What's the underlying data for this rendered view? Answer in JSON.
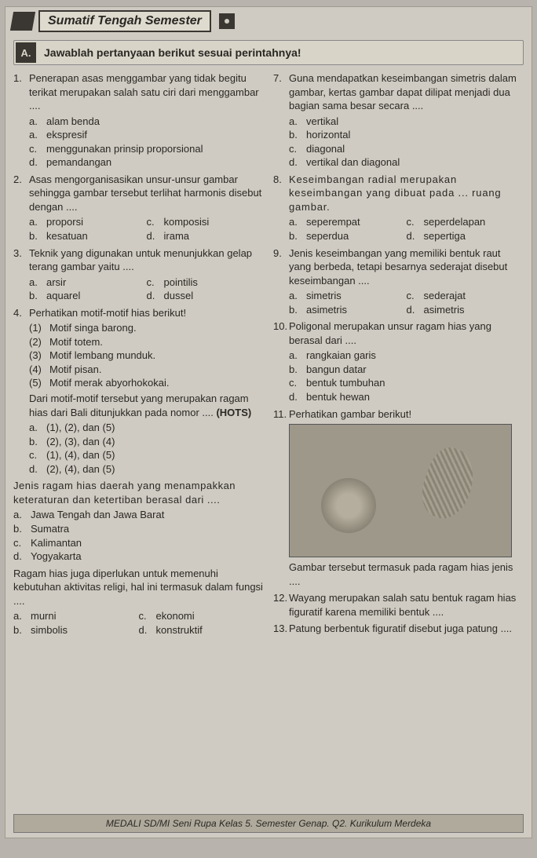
{
  "banner": {
    "title": "Sumatif Tengah Semester"
  },
  "section": {
    "letter": "A.",
    "instruction": "Jawablah pertanyaan berikut sesuai perintahnya!"
  },
  "left": {
    "q1": {
      "num": "1.",
      "text": "Penerapan asas menggambar yang tidak begitu terikat merupakan salah satu ciri dari menggambar ....",
      "a": "alam benda",
      "b": "ekspresif",
      "c": "menggunakan prinsip proporsional",
      "d": "pemandangan"
    },
    "q2": {
      "num": "2.",
      "text": "Asas mengorganisasikan unsur-unsur gambar sehingga gambar tersebut terlihat harmonis disebut dengan ....",
      "a": "proporsi",
      "c": "komposisi",
      "b": "kesatuan",
      "d": "irama"
    },
    "q3": {
      "num": "3.",
      "text": "Teknik yang digunakan untuk menunjuk­kan gelap terang gambar yaitu ....",
      "a": "arsir",
      "c": "pointilis",
      "b": "aquarel",
      "d": "dussel"
    },
    "q4": {
      "num": "4.",
      "text": "Perhatikan motif-motif hias berikut!",
      "s1": "(1)",
      "s1t": "Motif singa barong.",
      "s2": "(2)",
      "s2t": "Motif totem.",
      "s3": "(3)",
      "s3t": "Motif lembang munduk.",
      "s4": "(4)",
      "s4t": "Motif pisan.",
      "s5": "(5)",
      "s5t": "Motif merak abyorhokokai.",
      "tail": "Dari motif-motif tersebut yang merupakan ragam hias dari Bali ditunjukkan pada nomor .... ",
      "hots": "(HOTS)",
      "a": "(1), (2), dan (5)",
      "b": "(2), (3), dan (4)",
      "c": "(1), (4), dan (5)",
      "d": "(2), (4), dan (5)"
    },
    "q5": {
      "text": "Jenis ragam hias daerah yang menampakkan keteraturan dan ketertiban berasal dari ....",
      "a": "Jawa Tengah dan Jawa Barat",
      "b": "Sumatra",
      "c": "Kalimantan",
      "d": "Yogyakarta"
    },
    "q6": {
      "text": "Ragam hias juga diperlukan untuk memenuhi kebutuhan aktivitas religi, hal ini termasuk dalam fungsi ....",
      "a": "murni",
      "c": "ekonomi",
      "b": "simbolis",
      "d": "konstruktif"
    }
  },
  "right": {
    "q7": {
      "num": "7.",
      "text": "Guna mendapatkan keseimbangan simetris dalam gambar, kertas gambar dapat dilipat menjadi dua bagian sama besar secara ....",
      "a": "vertikal",
      "b": "horizontal",
      "c": "diagonal",
      "d": "vertikal dan diagonal"
    },
    "q8": {
      "num": "8.",
      "text": "Keseimbangan radial merupakan keseimbangan yang dibuat pada ... ruang gambar.",
      "a": "seperempat",
      "c": "seperdelapan",
      "b": "seperdua",
      "d": "sepertiga"
    },
    "q9": {
      "num": "9.",
      "text": "Jenis keseimbangan yang memiliki bentuk raut yang berbeda, tetapi besarnya sederajat disebut keseimbangan ....",
      "a": "simetris",
      "c": "sederajat",
      "b": "asimetris",
      "d": "asimetris"
    },
    "q10": {
      "num": "10.",
      "text": "Poligonal merupakan unsur ragam hias yang berasal dari ....",
      "a": "rangkaian garis",
      "b": "bangun datar",
      "c": "bentuk tumbuhan",
      "d": "bentuk hewan"
    },
    "q11": {
      "num": "11.",
      "text": "Perhatikan gambar berikut!",
      "caption": "Gambar tersebut termasuk pada ragam hias jenis ...."
    },
    "q12": {
      "num": "12.",
      "text": "Wayang merupakan salah satu bentuk ragam hias figuratif karena memiliki bentuk ...."
    },
    "q13": {
      "num": "13.",
      "text": "Patung berbentuk figuratif disebut juga patung ...."
    }
  },
  "footer": "MEDALI SD/MI Seni Rupa Kelas 5. Semester Genap. Q2. Kurikulum Merdeka",
  "labels": {
    "a": "a.",
    "b": "b.",
    "c": "c.",
    "d": "d."
  }
}
